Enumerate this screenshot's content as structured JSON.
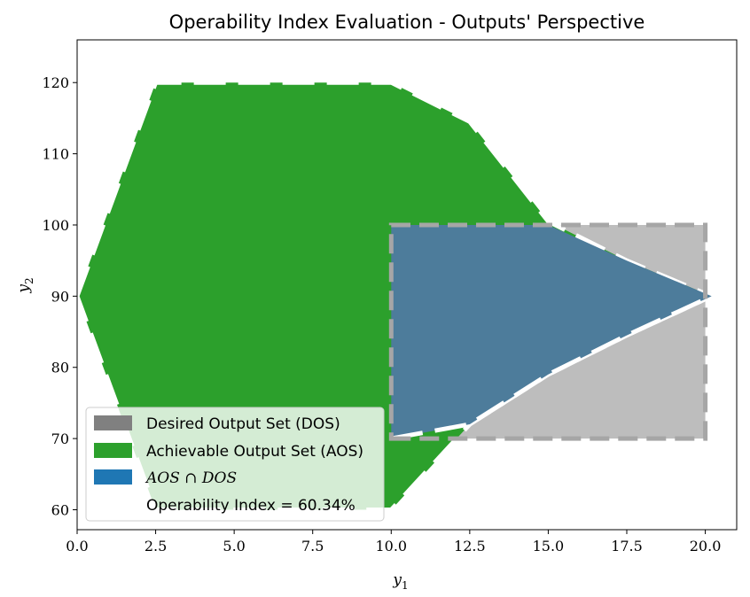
{
  "chart_data": {
    "type": "area",
    "title": "Operability Index Evaluation - Outputs' Perspective",
    "xlabel": "y",
    "xlabel_sub": "1",
    "ylabel": "y",
    "ylabel_sub": "2",
    "xlim": [
      0,
      21.0
    ],
    "ylim": [
      57.2,
      126.0
    ],
    "xticks": [
      0.0,
      2.5,
      5.0,
      7.5,
      10.0,
      12.5,
      15.0,
      17.5,
      20.0
    ],
    "xtick_labels": [
      "0.0",
      "2.5",
      "5.0",
      "7.5",
      "10.0",
      "12.5",
      "15.0",
      "17.5",
      "20.0"
    ],
    "yticks": [
      60,
      70,
      80,
      90,
      100,
      110,
      120
    ],
    "ytick_labels": [
      "60",
      "70",
      "80",
      "90",
      "100",
      "110",
      "120"
    ],
    "grid": false,
    "legend_position": "lower-left",
    "series": [
      {
        "name": "Desired Output Set (DOS)",
        "color": "#808080",
        "polygon": [
          [
            10,
            70
          ],
          [
            20,
            70
          ],
          [
            20,
            100
          ],
          [
            10,
            100
          ]
        ]
      },
      {
        "name": "Achievable Output Set (AOS)",
        "color": "#2ca02c",
        "polygon": [
          [
            0,
            90
          ],
          [
            2.5,
            120
          ],
          [
            10,
            120
          ],
          [
            12.5,
            114.5
          ],
          [
            15,
            100.5
          ],
          [
            17.5,
            95
          ],
          [
            20.2,
            90
          ],
          [
            17.5,
            84.5
          ],
          [
            15,
            79
          ],
          [
            12.5,
            72
          ],
          [
            10,
            60
          ],
          [
            2.5,
            60
          ],
          [
            0,
            90
          ]
        ]
      },
      {
        "name": "AOS ∩ DOS",
        "color": "#1f77b4",
        "polygon": [
          [
            10,
            70
          ],
          [
            12.5,
            72
          ],
          [
            15,
            79
          ],
          [
            17.5,
            84.5
          ],
          [
            20.2,
            90
          ],
          [
            17.5,
            95
          ],
          [
            15,
            100
          ],
          [
            10,
            100
          ]
        ]
      }
    ],
    "legend": [
      {
        "label": "Desired Output Set (DOS)",
        "color": "#808080",
        "math": false
      },
      {
        "label": "Achievable Output Set (AOS)",
        "color": "#2ca02c",
        "math": false
      },
      {
        "label": "AOS ∩ DOS",
        "color": "#1f77b4",
        "math": true
      },
      {
        "label": "Operability Index = 60.34%",
        "color": "",
        "math": false
      }
    ]
  }
}
